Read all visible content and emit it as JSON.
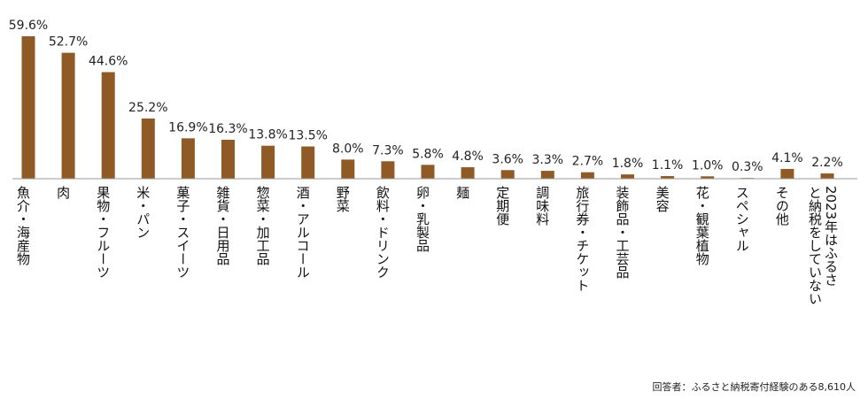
{
  "chart_data": {
    "type": "bar",
    "categories": [
      "魚介・海産物",
      "肉",
      "果物・フルーツ",
      "米・パン",
      "菓子・スイーツ",
      "雑貨・日用品",
      "惣菜・加工品",
      "酒・アルコール",
      "野菜",
      "飲料・ドリンク",
      "卵・乳製品",
      "麺",
      "定期便",
      "調味料",
      "旅行券・チケット",
      "装飾品・工芸品",
      "美容",
      "花・観葉植物",
      "スペシャル",
      "その他",
      "2023年はふるさと納税をしていない"
    ],
    "values": [
      59.6,
      52.7,
      44.6,
      25.2,
      16.9,
      16.3,
      13.8,
      13.5,
      8.0,
      7.3,
      5.8,
      4.8,
      3.6,
      3.3,
      2.7,
      1.8,
      1.1,
      1.0,
      0.3,
      4.1,
      2.2
    ],
    "value_labels": [
      "59.6%",
      "52.7%",
      "44.6%",
      "25.2%",
      "16.9%",
      "16.3%",
      "13.8%",
      "13.5%",
      "8.0%",
      "7.3%",
      "5.8%",
      "4.8%",
      "3.6%",
      "3.3%",
      "2.7%",
      "1.8%",
      "1.1%",
      "1.0%",
      "0.3%",
      "4.1%",
      "2.2%"
    ],
    "unit": "%",
    "ylim": [
      0,
      60
    ],
    "grid": false,
    "bar_color": "#8f5a25",
    "axis_color": "#999999",
    "respondents_note": "回答者：ふるさと納税寄付経験のある8,610人"
  }
}
